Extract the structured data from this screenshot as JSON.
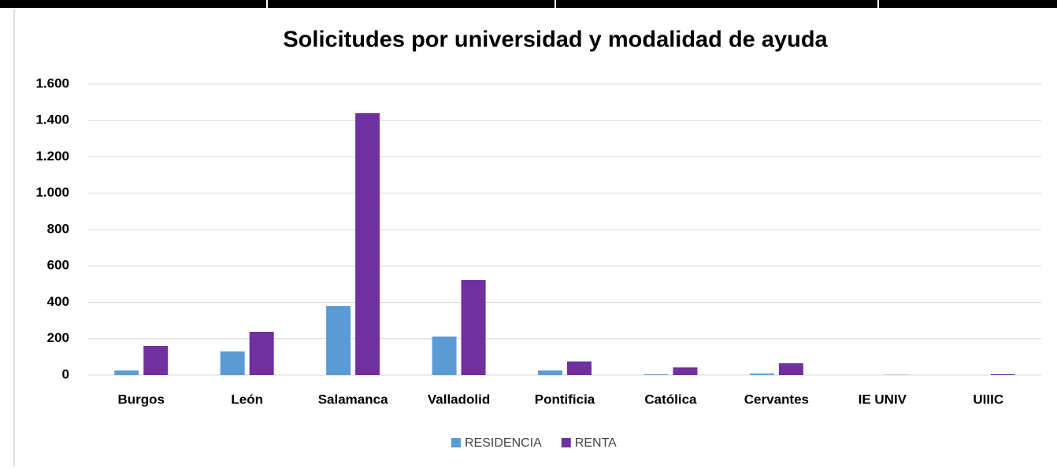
{
  "chart_data": {
    "type": "bar",
    "title": "Solicitudes por universidad y modalidad de ayuda",
    "categories": [
      "Burgos",
      "León",
      "Salamanca",
      "Valladolid",
      "Pontificia",
      "Católica",
      "Cervantes",
      "IE UNIV",
      "UIIIC"
    ],
    "series": [
      {
        "name": "RESIDENCIA",
        "color": "#5b9bd5",
        "values": [
          25,
          130,
          380,
          212,
          25,
          4,
          8,
          0,
          0
        ]
      },
      {
        "name": "RENTA",
        "color": "#7030a0",
        "values": [
          160,
          238,
          1440,
          523,
          75,
          42,
          65,
          1,
          5
        ]
      }
    ],
    "ylim": [
      0,
      1600
    ],
    "yticks": [
      0,
      200,
      400,
      600,
      800,
      {
        "value": 1000,
        "label": "1.000"
      },
      {
        "value": 1200,
        "label": "1.200"
      },
      {
        "value": 1400,
        "label": "1.400"
      },
      {
        "value": 1600,
        "label": "1.600"
      }
    ],
    "grid": true,
    "legend": "bottom"
  }
}
